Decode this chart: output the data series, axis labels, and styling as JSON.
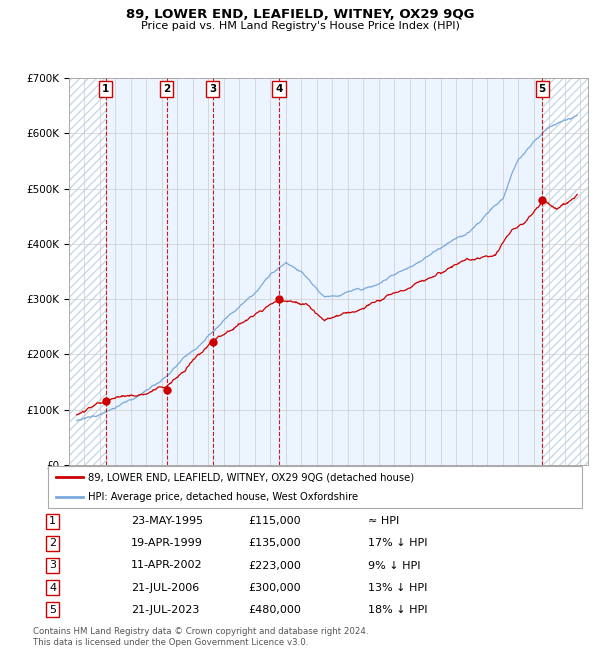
{
  "title": "89, LOWER END, LEAFIELD, WITNEY, OX29 9QG",
  "subtitle": "Price paid vs. HM Land Registry's House Price Index (HPI)",
  "xlim": [
    1993.0,
    2026.5
  ],
  "ylim": [
    0,
    700000
  ],
  "yticks": [
    0,
    100000,
    200000,
    300000,
    400000,
    500000,
    600000,
    700000
  ],
  "sale_dates": [
    1995.38,
    1999.3,
    2002.27,
    2006.55,
    2023.55
  ],
  "sale_prices": [
    115000,
    135000,
    223000,
    300000,
    480000
  ],
  "sale_labels": [
    "1",
    "2",
    "3",
    "4",
    "5"
  ],
  "red_line_color": "#cc0000",
  "blue_line_color": "#7aaadd",
  "dot_color": "#cc0000",
  "vline_color": "#cc0000",
  "grid_color": "#cccccc",
  "legend1_label": "89, LOWER END, LEAFIELD, WITNEY, OX29 9QG (detached house)",
  "legend2_label": "HPI: Average price, detached house, West Oxfordshire",
  "table_data": [
    [
      "1",
      "23-MAY-1995",
      "£115,000",
      "≈ HPI"
    ],
    [
      "2",
      "19-APR-1999",
      "£135,000",
      "17% ↓ HPI"
    ],
    [
      "3",
      "11-APR-2002",
      "£223,000",
      "9% ↓ HPI"
    ],
    [
      "4",
      "21-JUL-2006",
      "£300,000",
      "13% ↓ HPI"
    ],
    [
      "5",
      "21-JUL-2023",
      "£480,000",
      "18% ↓ HPI"
    ]
  ],
  "footnote": "Contains HM Land Registry data © Crown copyright and database right 2024.\nThis data is licensed under the Open Government Licence v3.0."
}
